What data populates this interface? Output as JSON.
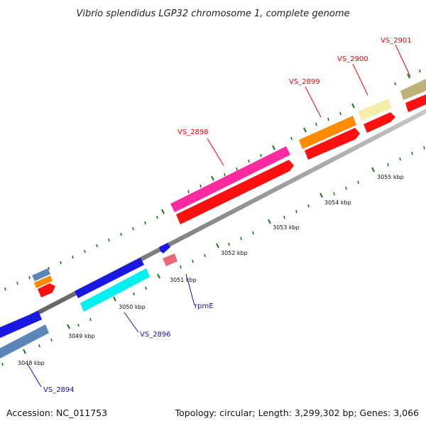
{
  "title": "Vibrio splendidus LGP32 chromosome 1, complete genome",
  "footer": {
    "accession": "Accession: NC_011753",
    "summary": "Topology: circular; Length: 3,299,302 bp; Genes: 3,066"
  },
  "scale_labels": [
    "3048 kbp",
    "3049 kbp",
    "3050 kbp",
    "3051 kbp",
    "3052 kbp",
    "3053 kbp",
    "3054 kbp",
    "3055 kbp"
  ],
  "gene_labels": [
    {
      "text": "VS_2894",
      "strand": "minus"
    },
    {
      "text": "VS_2896",
      "strand": "minus"
    },
    {
      "text": "rpmE",
      "strand": "minus"
    },
    {
      "text": "VS_2898",
      "strand": "plus"
    },
    {
      "text": "VS_2899",
      "strand": "plus"
    },
    {
      "text": "VS_2900",
      "strand": "plus"
    },
    {
      "text": "VS_2901",
      "strand": "plus"
    }
  ],
  "colors": {
    "cds": "#ff1010",
    "plus_blue": "#1818e0",
    "pink": "#ff2aa0",
    "orange": "#ff8c00",
    "pale_yellow": "#f5eeaa",
    "olive": "#bcb27a",
    "cyan": "#00f0f0",
    "steel": "#5b86b8",
    "backbone": "#8f8f8f",
    "tick": "#1a7a1a"
  }
}
